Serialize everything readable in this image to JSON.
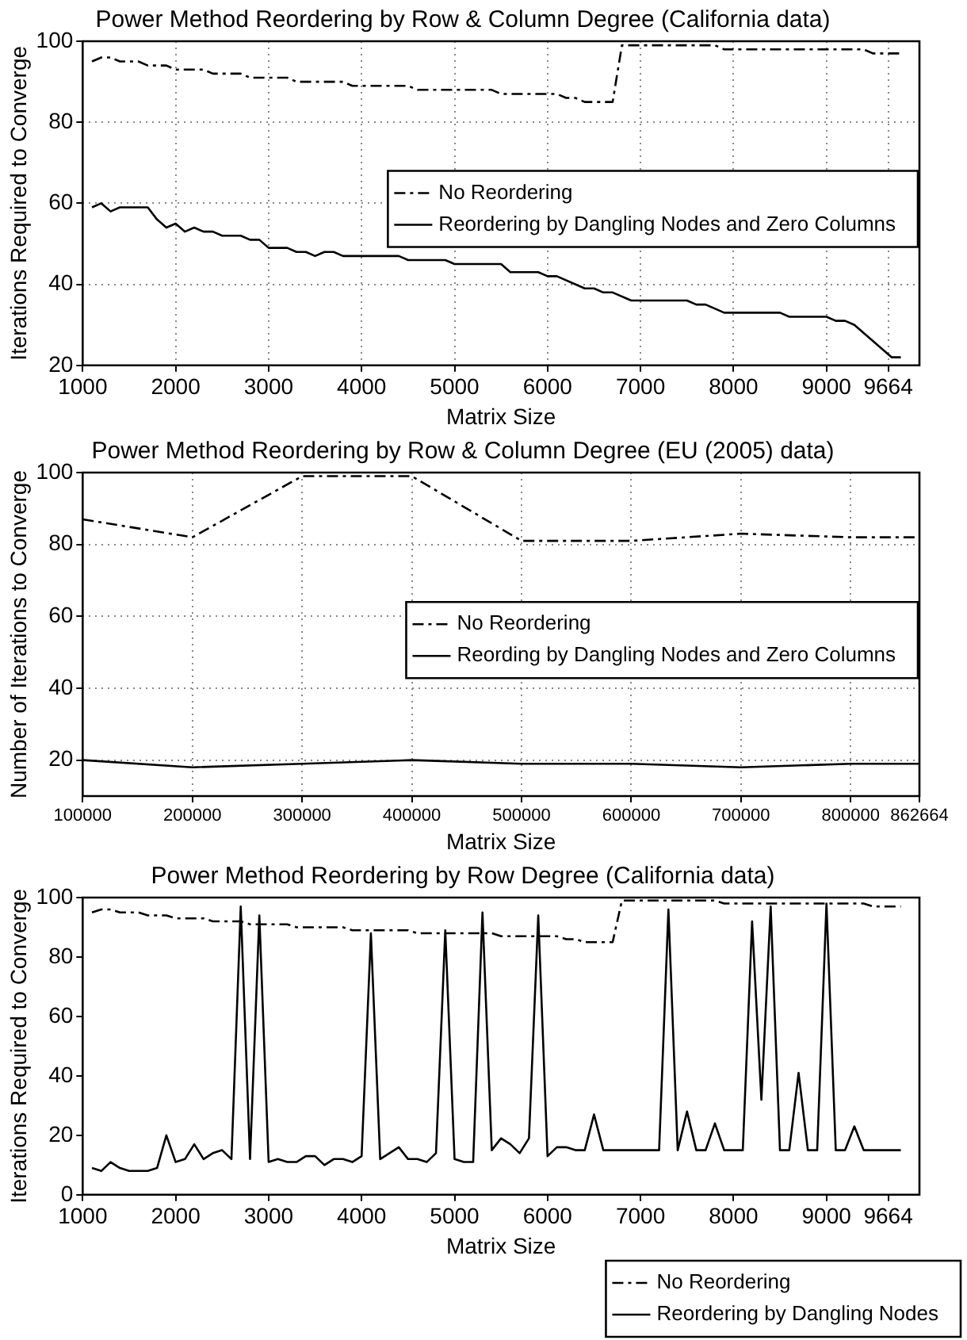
{
  "chart_data": [
    {
      "type": "line",
      "title": "Power Method Reordering by Row & Column Degree (California data)",
      "xlabel": "Matrix Size",
      "ylabel": "Iterations Required to Converge",
      "xlim": [
        1000,
        10000
      ],
      "xticks": [
        1000,
        2000,
        3000,
        4000,
        5000,
        6000,
        7000,
        8000,
        9000,
        9664
      ],
      "ylim": [
        20,
        100
      ],
      "yticks": [
        20,
        40,
        60,
        80,
        100
      ],
      "grid": true,
      "legend": "right",
      "series": [
        {
          "name": "No Reordering",
          "color": "#000000",
          "line_style": "dashed",
          "x": [
            1100,
            1200,
            1300,
            1400,
            1600,
            1700,
            1900,
            2000,
            2300,
            2400,
            2700,
            2800,
            3200,
            3300,
            3800,
            3900,
            4500,
            4600,
            5400,
            5500,
            6100,
            6200,
            6300,
            6400,
            6700,
            6800,
            7800,
            7900,
            9400,
            9500,
            9800
          ],
          "values": [
            95,
            96,
            96,
            95,
            95,
            94,
            94,
            93,
            93,
            92,
            92,
            91,
            91,
            90,
            90,
            89,
            89,
            88,
            88,
            87,
            87,
            86,
            86,
            85,
            85,
            99,
            99,
            98,
            98,
            97,
            97
          ]
        },
        {
          "name": "Reordering by Dangling Nodes and Zero Columns",
          "color": "#000000",
          "line_style": "solid",
          "x": [
            1100,
            1200,
            1300,
            1400,
            1700,
            1800,
            1900,
            2000,
            2100,
            2200,
            2300,
            2400,
            2500,
            2700,
            2800,
            2900,
            3000,
            3200,
            3300,
            3400,
            3500,
            3600,
            3700,
            3800,
            4400,
            4500,
            4900,
            5000,
            5500,
            5600,
            5900,
            6000,
            6100,
            6400,
            6500,
            6600,
            6700,
            6900,
            7500,
            7600,
            7700,
            7900,
            8500,
            8600,
            9000,
            9100,
            9200,
            9300,
            9700,
            9800
          ],
          "values": [
            59,
            60,
            58,
            59,
            59,
            56,
            54,
            55,
            53,
            54,
            53,
            53,
            52,
            52,
            51,
            51,
            49,
            49,
            48,
            48,
            47,
            48,
            48,
            47,
            47,
            46,
            46,
            45,
            45,
            43,
            43,
            42,
            42,
            39,
            39,
            38,
            38,
            36,
            36,
            35,
            35,
            33,
            33,
            32,
            32,
            31,
            31,
            30,
            22,
            22
          ]
        }
      ]
    },
    {
      "type": "line",
      "title": "Power Method Reordering by Row & Column Degree (EU (2005) data)",
      "xlabel": "Matrix Size",
      "ylabel": "Number of Iterations to Converge",
      "xlim": [
        100000,
        862664
      ],
      "xticks": [
        100000,
        200000,
        300000,
        400000,
        500000,
        600000,
        700000,
        800000,
        862664
      ],
      "ylim": [
        10,
        100
      ],
      "yticks": [
        20,
        40,
        60,
        80,
        100
      ],
      "grid": true,
      "legend": "right",
      "series": [
        {
          "name": "No Reordering",
          "color": "#000000",
          "line_style": "dashed",
          "x": [
            100000,
            200000,
            300000,
            400000,
            500000,
            600000,
            700000,
            800000,
            862664
          ],
          "values": [
            87,
            82,
            99,
            99,
            81,
            81,
            83,
            82,
            82
          ]
        },
        {
          "name": "Reording by Dangling Nodes and Zero Columns",
          "color": "#000000",
          "line_style": "solid",
          "x": [
            100000,
            200000,
            300000,
            400000,
            500000,
            600000,
            700000,
            800000,
            862664
          ],
          "values": [
            20,
            18,
            19,
            20,
            19,
            19,
            18,
            19,
            19
          ]
        }
      ]
    },
    {
      "type": "line",
      "title": "Power Method Reordering by Row Degree (California data)",
      "xlabel": "Matrix Size",
      "ylabel": "Iterations Required to Converge",
      "xlim": [
        1000,
        10000
      ],
      "xticks": [
        1000,
        2000,
        3000,
        4000,
        5000,
        6000,
        7000,
        8000,
        9000,
        9664
      ],
      "ylim": [
        0,
        100
      ],
      "yticks": [
        0,
        20,
        40,
        60,
        80,
        100
      ],
      "grid": false,
      "legend": "bottom right",
      "series": [
        {
          "name": "No Reordering",
          "color": "#000000",
          "line_style": "dashed",
          "x": [
            1100,
            1200,
            1300,
            1400,
            1600,
            1700,
            1900,
            2000,
            2300,
            2400,
            2700,
            2800,
            3200,
            3300,
            3800,
            3900,
            4500,
            4600,
            5400,
            5500,
            6100,
            6200,
            6300,
            6400,
            6700,
            6800,
            7800,
            7900,
            9400,
            9500,
            9800
          ],
          "values": [
            95,
            96,
            96,
            95,
            95,
            94,
            94,
            93,
            93,
            92,
            92,
            91,
            91,
            90,
            90,
            89,
            89,
            88,
            88,
            87,
            87,
            86,
            86,
            85,
            85,
            99,
            99,
            98,
            98,
            97,
            97
          ]
        },
        {
          "name": "Reordering by Dangling Nodes",
          "color": "#000000",
          "line_style": "solid",
          "x": [
            1100,
            1200,
            1300,
            1400,
            1500,
            1600,
            1700,
            1800,
            1900,
            2000,
            2100,
            2200,
            2300,
            2400,
            2500,
            2600,
            2700,
            2800,
            2900,
            3000,
            3100,
            3200,
            3300,
            3400,
            3500,
            3600,
            3700,
            3800,
            3900,
            4000,
            4100,
            4200,
            4300,
            4400,
            4500,
            4600,
            4700,
            4800,
            4900,
            5000,
            5100,
            5200,
            5300,
            5400,
            5500,
            5600,
            5700,
            5800,
            5900,
            6000,
            6100,
            6200,
            6300,
            6400,
            6500,
            6600,
            6700,
            6800,
            6900,
            7000,
            7100,
            7200,
            7300,
            7400,
            7500,
            7600,
            7700,
            7800,
            7900,
            8000,
            8100,
            8200,
            8300,
            8400,
            8500,
            8600,
            8700,
            8800,
            8900,
            9000,
            9100,
            9200,
            9300,
            9400,
            9500,
            9600,
            9700,
            9800
          ],
          "values": [
            9,
            8,
            11,
            9,
            8,
            8,
            8,
            9,
            20,
            11,
            12,
            17,
            12,
            14,
            15,
            12,
            97,
            12,
            94,
            11,
            12,
            11,
            11,
            13,
            13,
            10,
            12,
            12,
            11,
            13,
            88,
            12,
            14,
            16,
            12,
            12,
            11,
            14,
            89,
            12,
            11,
            11,
            95,
            15,
            19,
            17,
            14,
            19,
            94,
            13,
            16,
            16,
            15,
            15,
            27,
            15,
            15,
            15,
            15,
            15,
            15,
            15,
            96,
            15,
            28,
            15,
            15,
            24,
            15,
            15,
            15,
            92,
            32,
            97,
            15,
            15,
            41,
            15,
            15,
            98,
            15,
            15,
            23,
            15,
            15,
            15,
            15,
            15
          ]
        }
      ]
    }
  ]
}
